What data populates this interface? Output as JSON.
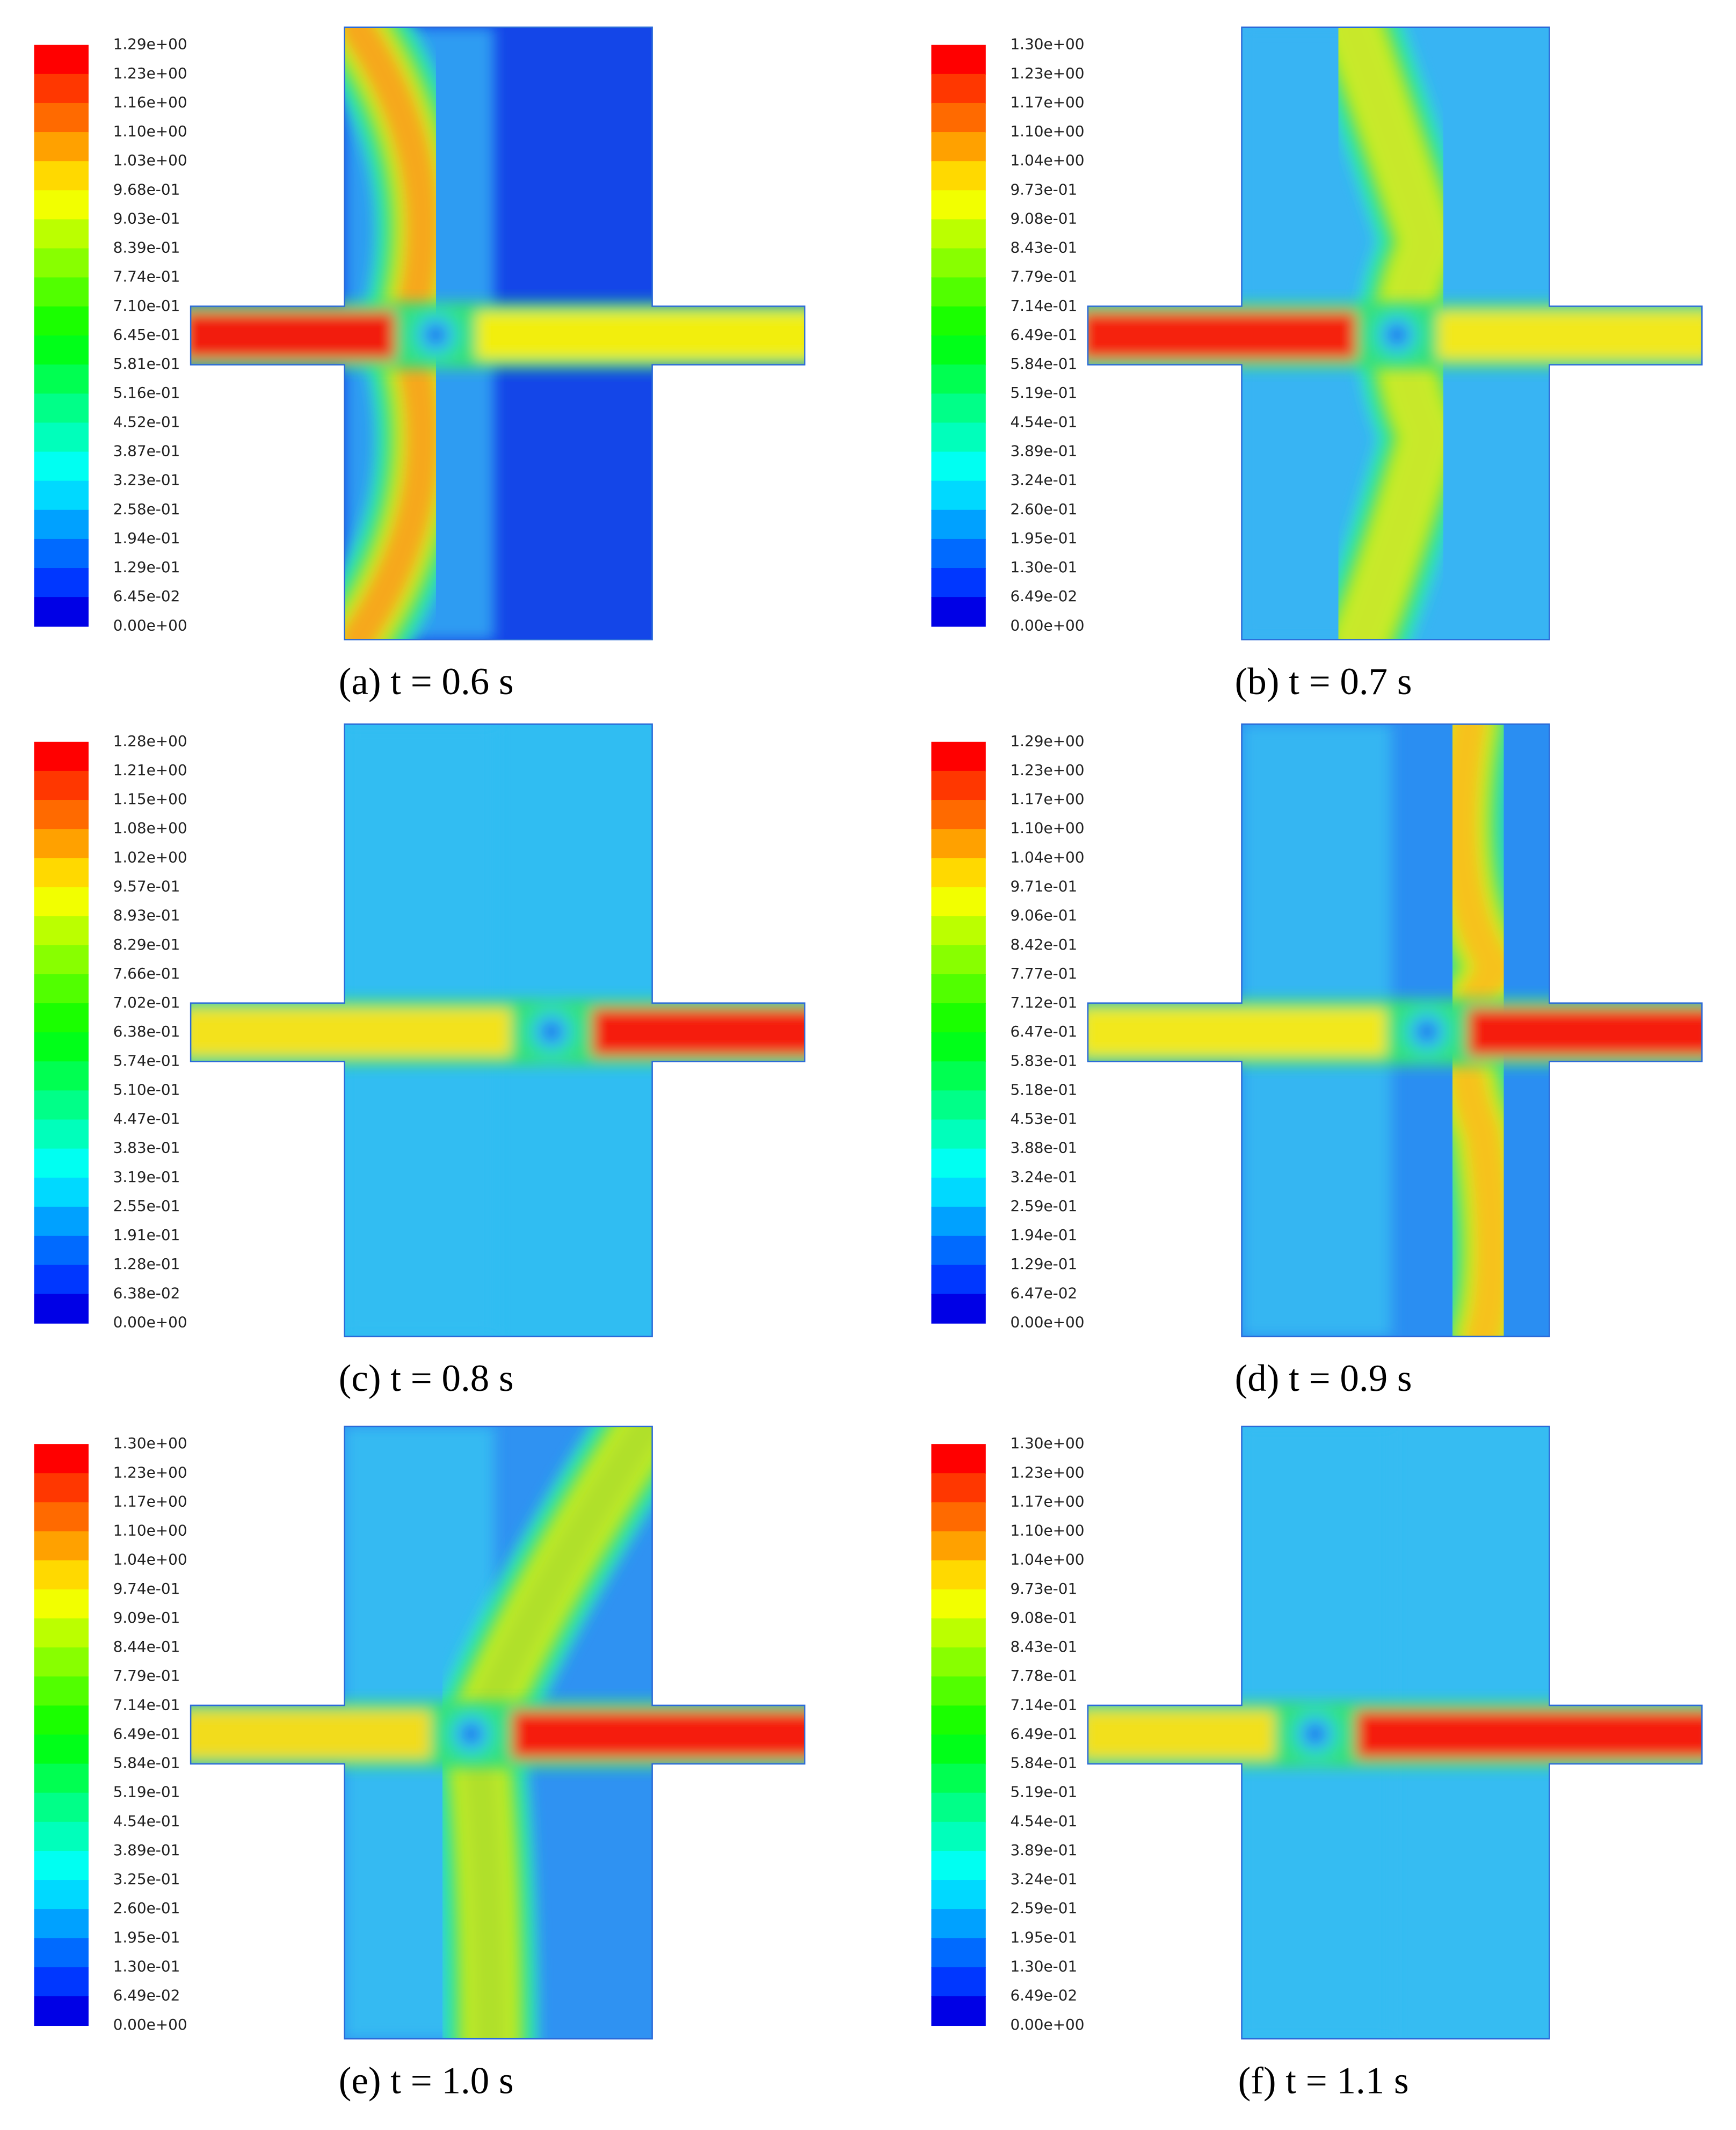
{
  "panels": [
    {
      "caption": "(a) t = 0.6 s",
      "colorbar_labels": [
        "1.29e+00",
        "1.23e+00",
        "1.16e+00",
        "1.10e+00",
        "1.03e+00",
        "9.68e-01",
        "9.03e-01",
        "8.39e-01",
        "7.74e-01",
        "7.10e-01",
        "6.45e-01",
        "5.81e-01",
        "5.16e-01",
        "4.52e-01",
        "3.87e-01",
        "3.23e-01",
        "2.58e-01",
        "1.94e-01",
        "1.29e-01",
        "6.45e-02",
        "0.00e+00"
      ]
    },
    {
      "caption": "(b) t = 0.7 s",
      "colorbar_labels": [
        "1.30e+00",
        "1.23e+00",
        "1.17e+00",
        "1.10e+00",
        "1.04e+00",
        "9.73e-01",
        "9.08e-01",
        "8.43e-01",
        "7.79e-01",
        "7.14e-01",
        "6.49e-01",
        "5.84e-01",
        "5.19e-01",
        "4.54e-01",
        "3.89e-01",
        "3.24e-01",
        "2.60e-01",
        "1.95e-01",
        "1.30e-01",
        "6.49e-02",
        "0.00e+00"
      ]
    },
    {
      "caption": "(c) t = 0.8 s",
      "colorbar_labels": [
        "1.28e+00",
        "1.21e+00",
        "1.15e+00",
        "1.08e+00",
        "1.02e+00",
        "9.57e-01",
        "8.93e-01",
        "8.29e-01",
        "7.66e-01",
        "7.02e-01",
        "6.38e-01",
        "5.74e-01",
        "5.10e-01",
        "4.47e-01",
        "3.83e-01",
        "3.19e-01",
        "2.55e-01",
        "1.91e-01",
        "1.28e-01",
        "6.38e-02",
        "0.00e+00"
      ]
    },
    {
      "caption": "(d) t = 0.9 s",
      "colorbar_labels": [
        "1.29e+00",
        "1.23e+00",
        "1.17e+00",
        "1.10e+00",
        "1.04e+00",
        "9.71e-01",
        "9.06e-01",
        "8.42e-01",
        "7.77e-01",
        "7.12e-01",
        "6.47e-01",
        "5.83e-01",
        "5.18e-01",
        "4.53e-01",
        "3.88e-01",
        "3.24e-01",
        "2.59e-01",
        "1.94e-01",
        "1.29e-01",
        "6.47e-02",
        "0.00e+00"
      ]
    },
    {
      "caption": "(e) t = 1.0 s",
      "colorbar_labels": [
        "1.30e+00",
        "1.23e+00",
        "1.17e+00",
        "1.10e+00",
        "1.04e+00",
        "9.74e-01",
        "9.09e-01",
        "8.44e-01",
        "7.79e-01",
        "7.14e-01",
        "6.49e-01",
        "5.84e-01",
        "5.19e-01",
        "4.54e-01",
        "3.89e-01",
        "3.25e-01",
        "2.60e-01",
        "1.95e-01",
        "1.30e-01",
        "6.49e-02",
        "0.00e+00"
      ]
    },
    {
      "caption": "(f) t = 1.1 s",
      "colorbar_labels": [
        "1.30e+00",
        "1.23e+00",
        "1.17e+00",
        "1.10e+00",
        "1.04e+00",
        "9.73e-01",
        "9.08e-01",
        "8.43e-01",
        "7.78e-01",
        "7.14e-01",
        "6.49e-01",
        "5.84e-01",
        "5.19e-01",
        "4.54e-01",
        "3.89e-01",
        "3.24e-01",
        "2.59e-01",
        "1.95e-01",
        "1.30e-01",
        "6.49e-02",
        "0.00e+00"
      ]
    }
  ]
}
